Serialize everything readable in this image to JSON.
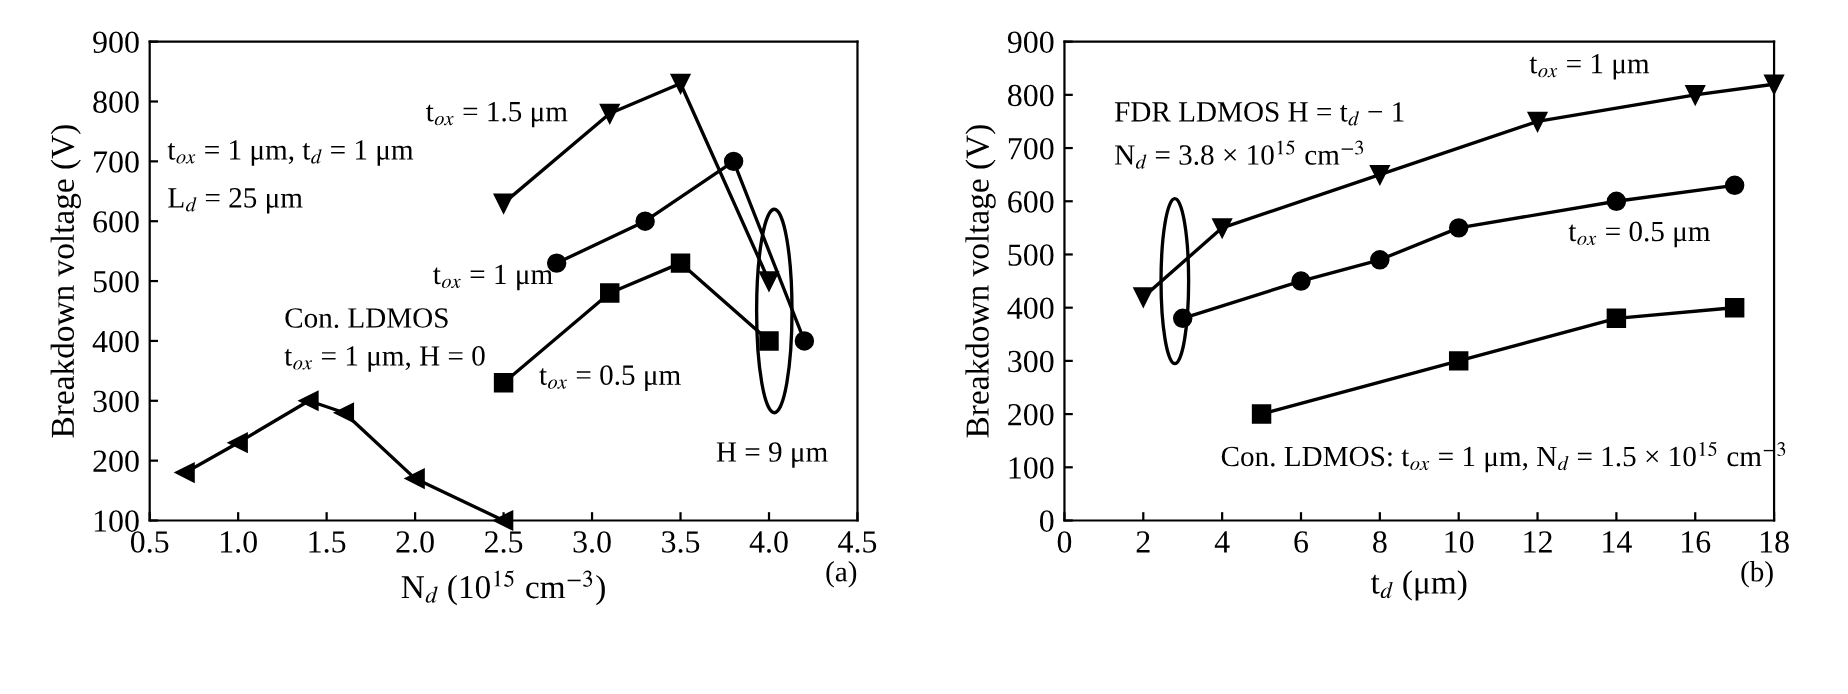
{
  "chart_data": [
    {
      "type": "line",
      "xlabel": "N$_{d}$ (10$^{15}$ cm$^{−3}$)",
      "ylabel": "Breakdown voltage (V)",
      "xlim": [
        0.5,
        4.5
      ],
      "xticks": [
        0.5,
        {
          "value": 1,
          "label": "1.0"
        },
        1.5,
        {
          "value": 2,
          "label": "2.0"
        },
        2.5,
        {
          "value": 3,
          "label": "3.0"
        },
        3.5,
        {
          "value": 4,
          "label": "4.0"
        },
        4.5
      ],
      "ylim": [
        100,
        900
      ],
      "yticks": [
        100,
        200,
        300,
        400,
        500,
        600,
        700,
        800,
        900
      ],
      "grid": false,
      "legend": false,
      "line_style": "solid",
      "series": [
        {
          "name": "t$_{ox}$ = 1.5 μm",
          "color": "#000000",
          "marker": "triangle",
          "x": [
            2.5,
            3.1,
            3.5,
            4.0
          ],
          "values": [
            630,
            780,
            830,
            500
          ]
        },
        {
          "name": "t$_{ox}$ = 1 μm",
          "color": "#000000",
          "marker": "circle",
          "x": [
            2.8,
            3.3,
            3.8,
            4.2
          ],
          "values": [
            530,
            600,
            700,
            400
          ]
        },
        {
          "name": "t$_{ox}$ = 0.5 μm",
          "color": "#000000",
          "marker": "square",
          "x": [
            2.5,
            3.1,
            3.5,
            4.0
          ],
          "values": [
            330,
            480,
            530,
            400
          ]
        },
        {
          "color": "#000000",
          "marker": "triangle-left",
          "x": [
            0.7,
            1.0,
            1.4,
            1.6,
            2.0,
            2.5
          ],
          "values": [
            180,
            230,
            300,
            280,
            170,
            100
          ]
        }
      ],
      "annotations": [
        "t$_{ox}$ = 1 μm, t$_{d}$ = 1 μm",
        "L$_{d}$ = 25 μm",
        "Con. LDMOS",
        "t$_{ox}$ = 1 μm, H = 0",
        "H = 9 μm",
        "(a)"
      ]
    },
    {
      "type": "line",
      "xlabel": "t$_{d}$ (μm)",
      "ylabel": "Breakdown voltage (V)",
      "xlim": [
        0,
        18
      ],
      "xticks": [
        0,
        2,
        4,
        6,
        8,
        10,
        12,
        14,
        16,
        18
      ],
      "ylim": [
        0,
        900
      ],
      "yticks": [
        0,
        100,
        200,
        300,
        400,
        500,
        600,
        700,
        800,
        900
      ],
      "grid": false,
      "legend": false,
      "line_style": "solid",
      "series": [
        {
          "name": "t$_{ox}$ = 1 μm",
          "color": "#000000",
          "marker": "triangle",
          "x": [
            2,
            4,
            8,
            12,
            16,
            18
          ],
          "values": [
            420,
            550,
            650,
            750,
            800,
            820
          ]
        },
        {
          "name": "t$_{ox}$ = 0.5 μm",
          "color": "#000000",
          "marker": "circle",
          "x": [
            3,
            6,
            8,
            10,
            14,
            17
          ],
          "values": [
            380,
            450,
            490,
            550,
            600,
            630
          ]
        },
        {
          "name": "Con. LDMOS: t$_{ox}$ = 1 μm, N$_{d}$ = 1.5 × 10$^{15}$ cm$^{−3}$",
          "color": "#000000",
          "marker": "square",
          "x": [
            5,
            10,
            14,
            17
          ],
          "values": [
            200,
            300,
            380,
            400
          ]
        }
      ],
      "annotations": [
        "FDR LDMOS H = t$_{d}$ − 1",
        "N$_{d}$ = 3.8 × 10$^{15}$ cm$^{−3}$",
        "(b)"
      ]
    }
  ]
}
